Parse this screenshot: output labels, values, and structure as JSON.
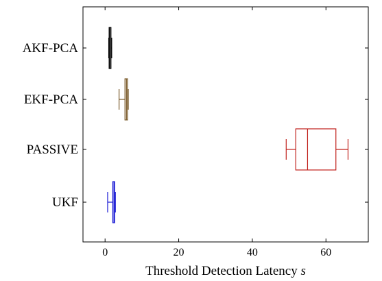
{
  "chart_data": {
    "type": "box",
    "orientation": "horizontal",
    "title": "",
    "xlabel": "Threshold Detection Latency",
    "xlabel_var": "s",
    "ylabel": "",
    "xlim": [
      -6,
      71.5
    ],
    "xticks": [
      0,
      20,
      40,
      60
    ],
    "grid": false,
    "categories": [
      "AKF-PCA",
      "EKF-PCA",
      "PASSIVE",
      "UKF"
    ],
    "series": [
      {
        "category": "AKF-PCA",
        "color": "#000000",
        "min": 1.0,
        "q1": 1.1,
        "median": 1.3,
        "q3": 1.6,
        "max": 1.8
      },
      {
        "category": "EKF-PCA",
        "color": "#7a5a2a",
        "min": 3.8,
        "q1": 5.4,
        "median": 5.8,
        "q3": 6.1,
        "max": 6.3
      },
      {
        "category": "PASSIVE",
        "color": "#c0201b",
        "min": 49.2,
        "q1": 51.8,
        "median": 55.0,
        "q3": 62.7,
        "max": 66.0
      },
      {
        "category": "UKF",
        "color": "#1a1ad4",
        "min": 0.7,
        "q1": 2.1,
        "median": 2.4,
        "q3": 2.6,
        "max": 2.8
      }
    ]
  }
}
